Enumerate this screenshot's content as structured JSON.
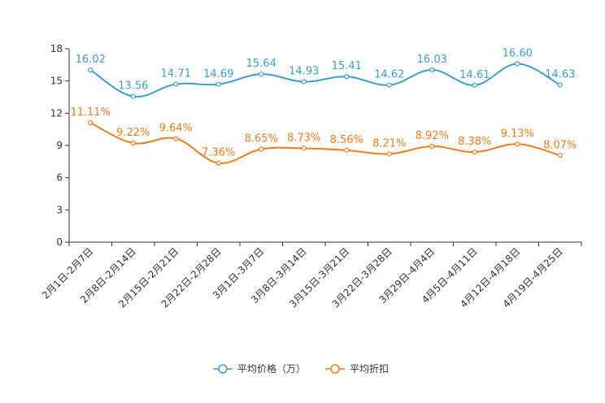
{
  "chart_data": {
    "type": "line",
    "title": "",
    "xlabel": "",
    "ylabel": "",
    "ylim": [
      0,
      18
    ],
    "yticks": [
      0,
      3,
      6,
      9,
      12,
      15,
      18
    ],
    "yticks_text": [
      "0",
      "3",
      "6",
      "9",
      "12",
      "15",
      "18"
    ],
    "grid": false,
    "legend_position": "bottom-center",
    "categories": [
      "2月1日-2月7日",
      "2月8日-2月14日",
      "2月15日-2月21日",
      "2月22日-2月28日",
      "3月1日-3月7日",
      "3月8日-3月14日",
      "3月15日-3月21日",
      "3月22日-3月28日",
      "3月29日-4月4日",
      "4月5日-4月11日",
      "4月12日-4月18日",
      "4月19日-4月25日"
    ],
    "series": [
      {
        "name": "平均价格（万）",
        "color": "#3a9fd0",
        "values": [
          16.02,
          13.56,
          14.71,
          14.69,
          15.64,
          14.93,
          15.41,
          14.62,
          16.03,
          14.61,
          16.6,
          14.63
        ],
        "labels": [
          "16.02",
          "13.56",
          "14.71",
          "14.69",
          "15.64",
          "14.93",
          "15.41",
          "14.62",
          "16.03",
          "14.61",
          "16.60",
          "14.63"
        ]
      },
      {
        "name": "平均折扣",
        "color": "#f07c1e",
        "values": [
          11.11,
          9.22,
          9.64,
          7.36,
          8.65,
          8.73,
          8.56,
          8.21,
          8.92,
          8.38,
          9.13,
          8.07
        ],
        "labels": [
          "11.11%",
          "9.22%",
          "9.64%",
          "7.36%",
          "8.65%",
          "8.73%",
          "8.56%",
          "8.21%",
          "8.92%",
          "8.38%",
          "9.13%",
          "8.07%"
        ]
      }
    ]
  }
}
